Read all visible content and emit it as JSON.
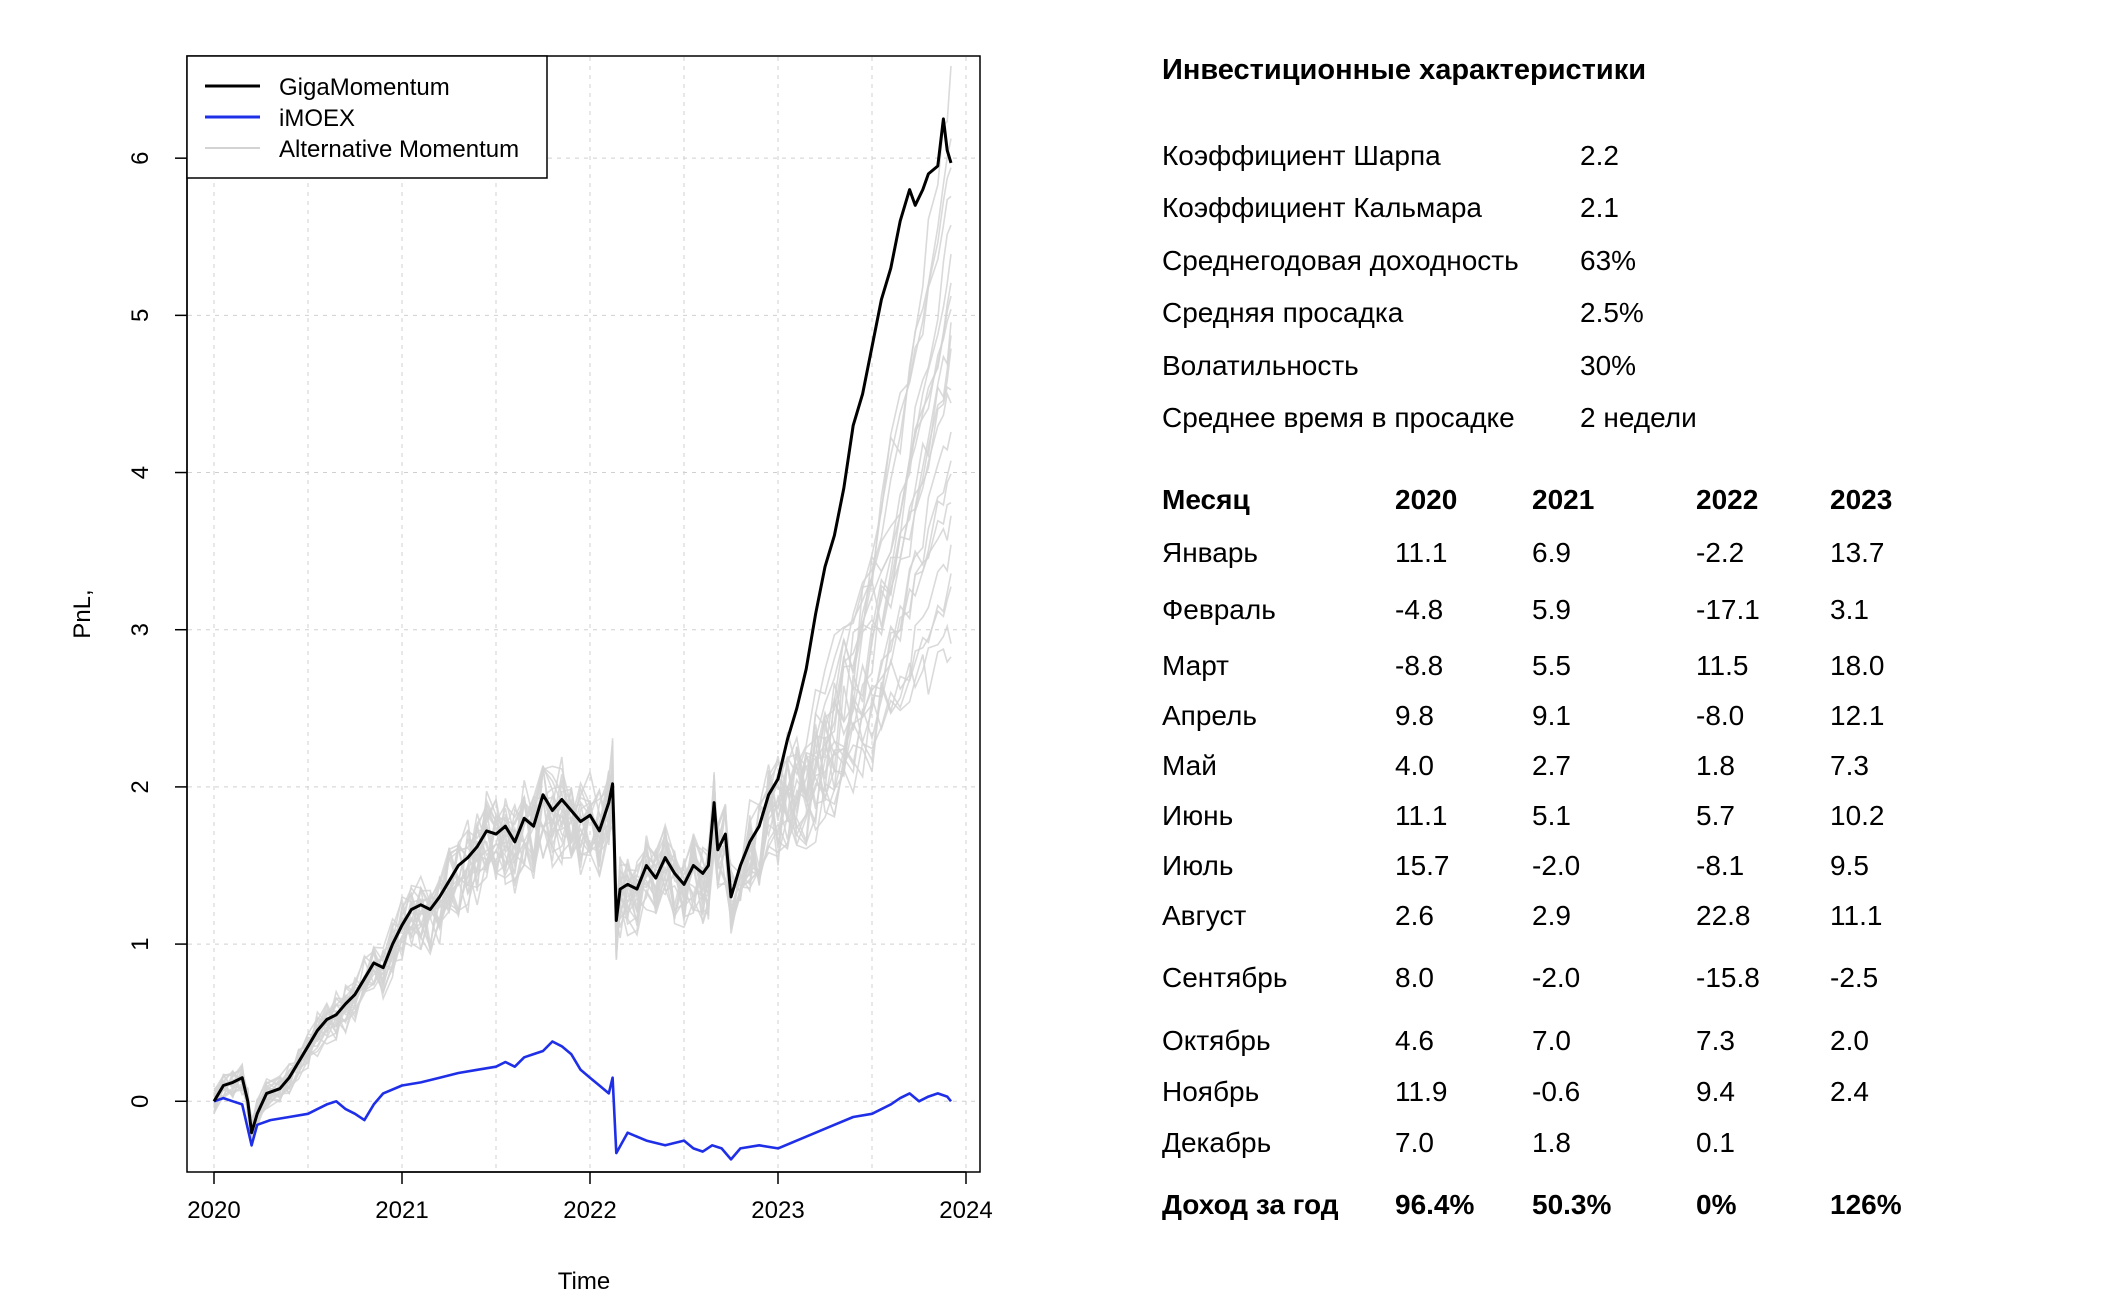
{
  "chart_data": {
    "type": "line",
    "xlabel": "Time",
    "ylabel": "PnL,",
    "xlim": [
      2020,
      2024
    ],
    "ylim": [
      -0.45,
      6.65
    ],
    "x_ticks": [
      "2020",
      "2021",
      "2022",
      "2023",
      "2024"
    ],
    "y_ticks": [
      "0",
      "1",
      "2",
      "3",
      "4",
      "5",
      "6"
    ],
    "grid": true,
    "legend_position": "top-left",
    "legend": [
      {
        "name": "GigaMomentum",
        "color": "#000000"
      },
      {
        "name": "iMOEX",
        "color": "#1f2fe8"
      },
      {
        "name": "Alternative Momentum",
        "color": "#d3d3d3"
      }
    ],
    "series": [
      {
        "name": "GigaMomentum",
        "color": "#000000",
        "points": [
          [
            2020.0,
            0.0
          ],
          [
            2020.05,
            0.1
          ],
          [
            2020.1,
            0.12
          ],
          [
            2020.15,
            0.15
          ],
          [
            2020.18,
            0.0
          ],
          [
            2020.2,
            -0.2
          ],
          [
            2020.23,
            -0.08
          ],
          [
            2020.28,
            0.05
          ],
          [
            2020.35,
            0.08
          ],
          [
            2020.4,
            0.15
          ],
          [
            2020.45,
            0.25
          ],
          [
            2020.5,
            0.35
          ],
          [
            2020.55,
            0.45
          ],
          [
            2020.6,
            0.52
          ],
          [
            2020.65,
            0.55
          ],
          [
            2020.7,
            0.62
          ],
          [
            2020.75,
            0.68
          ],
          [
            2020.8,
            0.78
          ],
          [
            2020.85,
            0.88
          ],
          [
            2020.9,
            0.85
          ],
          [
            2020.95,
            1.0
          ],
          [
            2021.0,
            1.12
          ],
          [
            2021.05,
            1.22
          ],
          [
            2021.1,
            1.25
          ],
          [
            2021.15,
            1.22
          ],
          [
            2021.2,
            1.3
          ],
          [
            2021.25,
            1.4
          ],
          [
            2021.3,
            1.5
          ],
          [
            2021.35,
            1.55
          ],
          [
            2021.4,
            1.62
          ],
          [
            2021.45,
            1.72
          ],
          [
            2021.5,
            1.7
          ],
          [
            2021.55,
            1.75
          ],
          [
            2021.6,
            1.65
          ],
          [
            2021.65,
            1.8
          ],
          [
            2021.7,
            1.75
          ],
          [
            2021.75,
            1.95
          ],
          [
            2021.8,
            1.85
          ],
          [
            2021.85,
            1.92
          ],
          [
            2021.9,
            1.85
          ],
          [
            2021.95,
            1.78
          ],
          [
            2022.0,
            1.82
          ],
          [
            2022.05,
            1.72
          ],
          [
            2022.1,
            1.9
          ],
          [
            2022.12,
            2.02
          ],
          [
            2022.13,
            1.62
          ],
          [
            2022.14,
            1.15
          ],
          [
            2022.16,
            1.35
          ],
          [
            2022.2,
            1.38
          ],
          [
            2022.25,
            1.35
          ],
          [
            2022.3,
            1.5
          ],
          [
            2022.35,
            1.42
          ],
          [
            2022.4,
            1.55
          ],
          [
            2022.45,
            1.45
          ],
          [
            2022.5,
            1.38
          ],
          [
            2022.55,
            1.5
          ],
          [
            2022.6,
            1.45
          ],
          [
            2022.63,
            1.5
          ],
          [
            2022.66,
            1.9
          ],
          [
            2022.68,
            1.6
          ],
          [
            2022.72,
            1.7
          ],
          [
            2022.75,
            1.3
          ],
          [
            2022.8,
            1.5
          ],
          [
            2022.85,
            1.65
          ],
          [
            2022.9,
            1.75
          ],
          [
            2022.95,
            1.95
          ],
          [
            2023.0,
            2.05
          ],
          [
            2023.05,
            2.3
          ],
          [
            2023.1,
            2.5
          ],
          [
            2023.15,
            2.75
          ],
          [
            2023.2,
            3.1
          ],
          [
            2023.25,
            3.4
          ],
          [
            2023.3,
            3.6
          ],
          [
            2023.35,
            3.9
          ],
          [
            2023.4,
            4.3
          ],
          [
            2023.45,
            4.5
          ],
          [
            2023.5,
            4.8
          ],
          [
            2023.55,
            5.1
          ],
          [
            2023.6,
            5.3
          ],
          [
            2023.65,
            5.6
          ],
          [
            2023.7,
            5.8
          ],
          [
            2023.73,
            5.7
          ],
          [
            2023.77,
            5.8
          ],
          [
            2023.8,
            5.9
          ],
          [
            2023.85,
            5.95
          ],
          [
            2023.88,
            6.25
          ],
          [
            2023.9,
            6.05
          ],
          [
            2023.92,
            5.97
          ]
        ]
      },
      {
        "name": "iMOEX",
        "color": "#1f2fe8",
        "points": [
          [
            2020.0,
            0.0
          ],
          [
            2020.05,
            0.02
          ],
          [
            2020.1,
            0.0
          ],
          [
            2020.15,
            -0.02
          ],
          [
            2020.2,
            -0.28
          ],
          [
            2020.23,
            -0.15
          ],
          [
            2020.3,
            -0.12
          ],
          [
            2020.4,
            -0.1
          ],
          [
            2020.5,
            -0.08
          ],
          [
            2020.55,
            -0.05
          ],
          [
            2020.6,
            -0.02
          ],
          [
            2020.65,
            0.0
          ],
          [
            2020.7,
            -0.05
          ],
          [
            2020.75,
            -0.08
          ],
          [
            2020.8,
            -0.12
          ],
          [
            2020.85,
            -0.02
          ],
          [
            2020.9,
            0.05
          ],
          [
            2021.0,
            0.1
          ],
          [
            2021.1,
            0.12
          ],
          [
            2021.2,
            0.15
          ],
          [
            2021.3,
            0.18
          ],
          [
            2021.4,
            0.2
          ],
          [
            2021.5,
            0.22
          ],
          [
            2021.55,
            0.25
          ],
          [
            2021.6,
            0.22
          ],
          [
            2021.65,
            0.28
          ],
          [
            2021.7,
            0.3
          ],
          [
            2021.75,
            0.32
          ],
          [
            2021.8,
            0.38
          ],
          [
            2021.85,
            0.35
          ],
          [
            2021.9,
            0.3
          ],
          [
            2021.95,
            0.2
          ],
          [
            2022.0,
            0.15
          ],
          [
            2022.05,
            0.1
          ],
          [
            2022.1,
            0.05
          ],
          [
            2022.12,
            0.15
          ],
          [
            2022.14,
            -0.33
          ],
          [
            2022.2,
            -0.2
          ],
          [
            2022.3,
            -0.25
          ],
          [
            2022.4,
            -0.28
          ],
          [
            2022.5,
            -0.25
          ],
          [
            2022.55,
            -0.3
          ],
          [
            2022.6,
            -0.32
          ],
          [
            2022.65,
            -0.28
          ],
          [
            2022.7,
            -0.3
          ],
          [
            2022.75,
            -0.37
          ],
          [
            2022.8,
            -0.3
          ],
          [
            2022.9,
            -0.28
          ],
          [
            2023.0,
            -0.3
          ],
          [
            2023.1,
            -0.25
          ],
          [
            2023.2,
            -0.2
          ],
          [
            2023.3,
            -0.15
          ],
          [
            2023.4,
            -0.1
          ],
          [
            2023.5,
            -0.08
          ],
          [
            2023.6,
            -0.02
          ],
          [
            2023.65,
            0.02
          ],
          [
            2023.7,
            0.05
          ],
          [
            2023.75,
            0.0
          ],
          [
            2023.8,
            0.03
          ],
          [
            2023.85,
            0.05
          ],
          [
            2023.9,
            0.03
          ],
          [
            2023.92,
            0.0
          ]
        ]
      }
    ],
    "alternative_series": {
      "name": "Alternative Momentum",
      "color": "#d3d3d3",
      "count": 24,
      "end_values": [
        2.9,
        3.0,
        3.2,
        3.3,
        3.5,
        3.7,
        3.8,
        4.0,
        4.1,
        4.3,
        4.5,
        4.6,
        4.7,
        4.8,
        4.9,
        5.0,
        5.1,
        5.2,
        5.4,
        5.6,
        5.8,
        6.0,
        6.2,
        6.5
      ]
    }
  },
  "metrics": {
    "title": "Инвестиционные характеристики",
    "rows": [
      {
        "label": "Коэффициент Шарпа",
        "value": "2.2"
      },
      {
        "label": "Коэффициент Кальмара",
        "value": "2.1"
      },
      {
        "label": "Среднегодовая доходность",
        "value": "63%"
      },
      {
        "label": "Средняя просадка",
        "value": "2.5%"
      },
      {
        "label": "Волатильность",
        "value": "30%"
      },
      {
        "label": "Среднее время в просадке",
        "value": "2 недели"
      }
    ]
  },
  "monthly": {
    "header": [
      "Месяц",
      "2020",
      "2021",
      "2022",
      "2023"
    ],
    "rows": [
      {
        "month": "Январь",
        "y2020": "11.1",
        "y2021": "6.9",
        "y2022": "-2.2",
        "y2023": "13.7"
      },
      {
        "month": "Февраль",
        "y2020": "-4.8",
        "y2021": "5.9",
        "y2022": "-17.1",
        "y2023": "3.1"
      },
      {
        "month": "Март",
        "y2020": "-8.8",
        "y2021": "5.5",
        "y2022": "11.5",
        "y2023": "18.0"
      },
      {
        "month": "Апрель",
        "y2020": "9.8",
        "y2021": "9.1",
        "y2022": "-8.0",
        "y2023": "12.1"
      },
      {
        "month": "Май",
        "y2020": "4.0",
        "y2021": "2.7",
        "y2022": "1.8",
        "y2023": "7.3"
      },
      {
        "month": "Июнь",
        "y2020": "11.1",
        "y2021": "5.1",
        "y2022": "5.7",
        "y2023": "10.2"
      },
      {
        "month": "Июль",
        "y2020": "15.7",
        "y2021": "-2.0",
        "y2022": "-8.1",
        "y2023": "9.5"
      },
      {
        "month": "Август",
        "y2020": "2.6",
        "y2021": "2.9",
        "y2022": "22.8",
        "y2023": "11.1"
      },
      {
        "month": "Сентябрь",
        "y2020": "8.0",
        "y2021": "-2.0",
        "y2022": "-15.8",
        "y2023": "-2.5"
      },
      {
        "month": "Октябрь",
        "y2020": "4.6",
        "y2021": "7.0",
        "y2022": "7.3",
        "y2023": "2.0"
      },
      {
        "month": "Ноябрь",
        "y2020": "11.9",
        "y2021": "-0.6",
        "y2022": "9.4",
        "y2023": "2.4"
      },
      {
        "month": "Декабрь",
        "y2020": "7.0",
        "y2021": "1.8",
        "y2022": "0.1",
        "y2023": ""
      }
    ],
    "total": {
      "label": "Доход за год",
      "y2020": "96.4%",
      "y2021": "50.3%",
      "y2022": "0%",
      "y2023": "126%"
    }
  }
}
